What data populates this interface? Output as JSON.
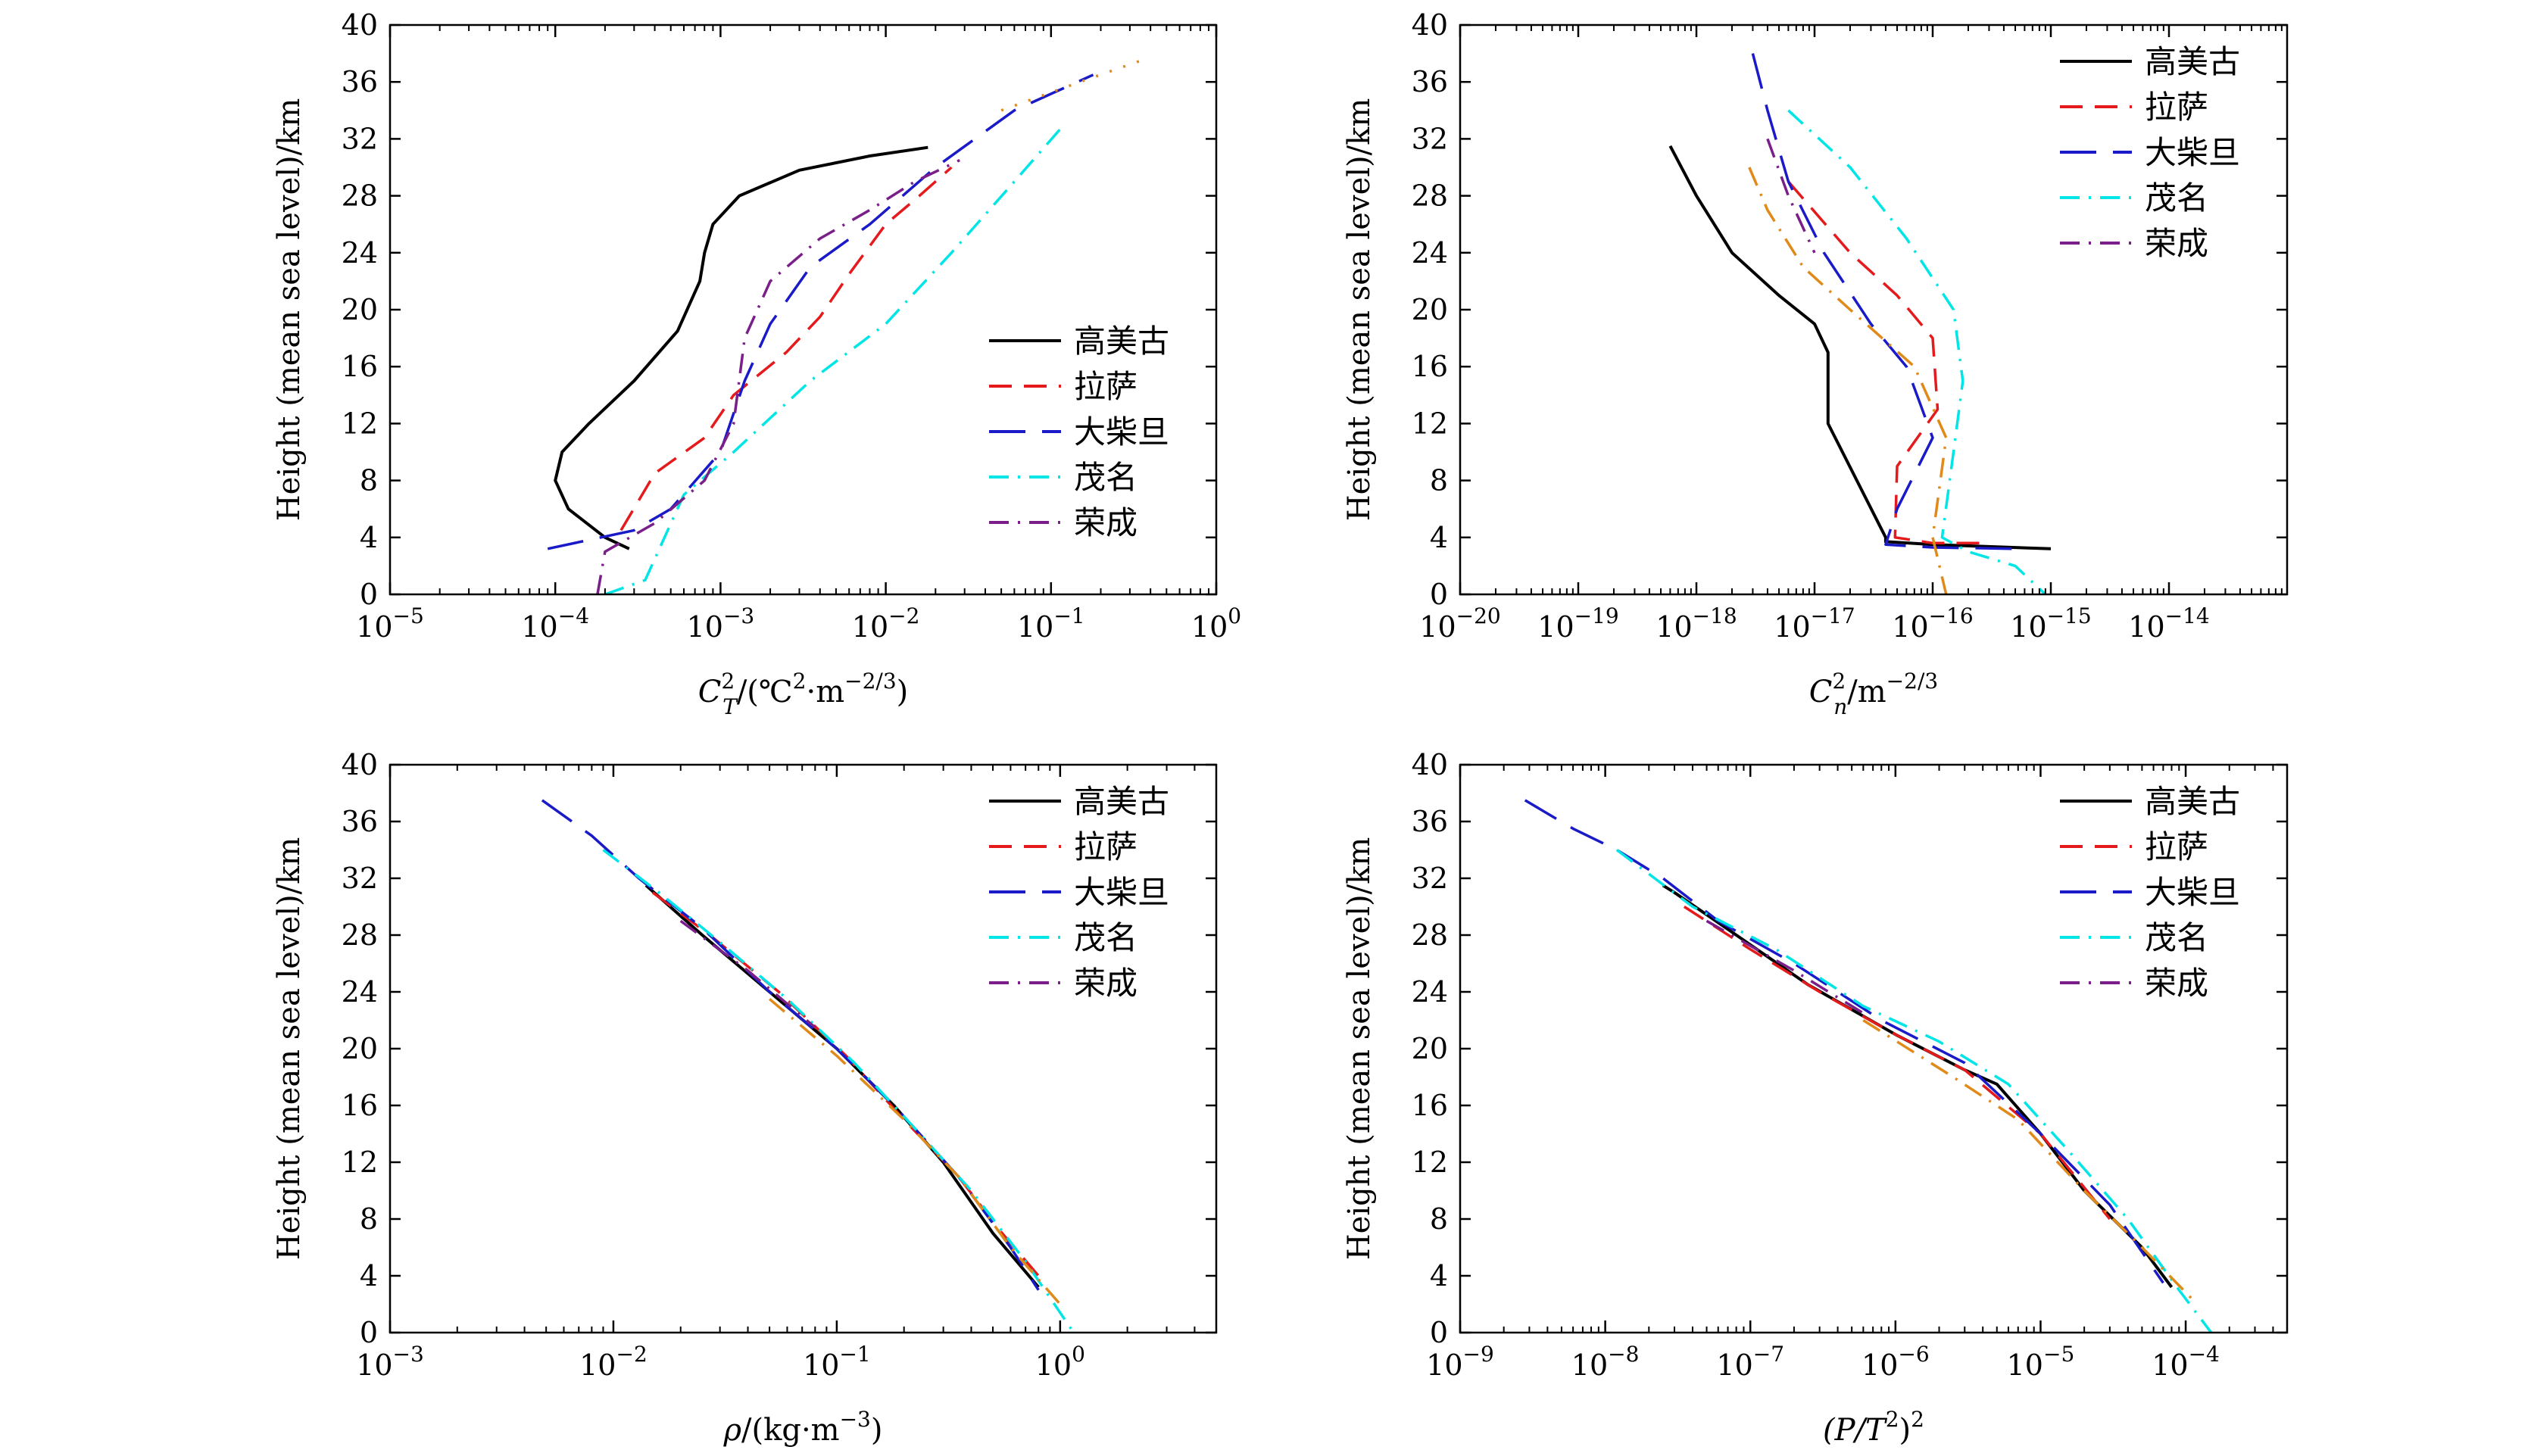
{
  "colors": {
    "高美古": "#000000",
    "拉萨": "#e41a1c",
    "大柴旦": "#1a1ac8",
    "茂名": "#00e5e5",
    "荣成": "#7a1f8a",
    "orange": "#e08a1a"
  },
  "chart_data": [
    {
      "id": "ct2",
      "type": "line",
      "xscale": "log",
      "xlim": [
        1e-05,
        1
      ],
      "ylim": [
        0,
        40
      ],
      "xticks": [
        {
          "value": 1e-05,
          "base": "10",
          "exp": "−5"
        },
        {
          "value": 0.0001,
          "base": "10",
          "exp": "−4"
        },
        {
          "value": 0.001,
          "base": "10",
          "exp": "−3"
        },
        {
          "value": 0.01,
          "base": "10",
          "exp": "−2"
        },
        {
          "value": 0.1,
          "base": "10",
          "exp": "−1"
        },
        {
          "value": 1,
          "base": "10",
          "exp": "0"
        }
      ],
      "yticks": [
        "0",
        "4",
        "8",
        "12",
        "16",
        "20",
        "24",
        "28",
        "32",
        "36",
        "40"
      ],
      "ylabel": "Height (mean sea level)/km",
      "xlabel": {
        "pre": "C",
        "sup": "2",
        "sub": "T",
        "rest": "/(℃",
        "sup2": "2",
        "rest2": "·m",
        "sup3": "−2/3",
        "rest3": ")"
      },
      "legend": {
        "position": "lower-right",
        "entries": [
          "高美古",
          "拉萨",
          "大柴旦",
          "茂名",
          "荣成"
        ]
      },
      "series": [
        {
          "name": "高美古",
          "style": "solid",
          "x": [
            0.00028,
            0.0002,
            0.00012,
            0.0001,
            0.00011,
            0.00016,
            0.0003,
            0.00055,
            0.00075,
            0.0008,
            0.0009,
            0.0013,
            0.003,
            0.008,
            0.018
          ],
          "y": [
            3.2,
            4,
            6,
            8,
            10,
            12,
            15,
            18.5,
            22,
            24,
            26,
            28,
            29.8,
            30.8,
            31.4
          ]
        },
        {
          "name": "拉萨",
          "style": "dash",
          "x": [
            0.00025,
            0.0004,
            0.0008,
            0.0012,
            0.0025,
            0.004,
            0.006,
            0.01,
            0.016,
            0.025
          ],
          "y": [
            4.5,
            8.5,
            11,
            14,
            17,
            19.5,
            22.5,
            26,
            28,
            30
          ]
        },
        {
          "name": "大柴旦",
          "style": "longdash",
          "x": [
            9e-05,
            0.0003,
            0.0005,
            0.001,
            0.0014,
            0.002,
            0.0035,
            0.008,
            0.02,
            0.06,
            0.18
          ],
          "y": [
            3.2,
            4.5,
            6,
            10,
            15,
            19,
            23,
            26,
            30,
            34,
            36.5
          ]
        },
        {
          "name": "茂名",
          "style": "dashdot",
          "x": [
            0.0002,
            0.00035,
            0.0006,
            0.0012,
            0.0035,
            0.01,
            0.025,
            0.06,
            0.12
          ],
          "y": [
            0,
            1,
            7,
            10,
            15,
            19,
            24,
            29,
            33
          ]
        },
        {
          "name": "荣成",
          "style": "dashdot",
          "x": [
            0.00018,
            0.0002,
            0.0004,
            0.0008,
            0.0012,
            0.0014,
            0.002,
            0.004,
            0.008,
            0.015,
            0.028
          ],
          "y": [
            0,
            3,
            5,
            8,
            12,
            18,
            22,
            25,
            27,
            29,
            30.5
          ]
        },
        {
          "name": "orange",
          "style": "dot",
          "x": [
            0.05,
            0.15,
            0.35
          ],
          "y": [
            34,
            36,
            37.5
          ]
        }
      ]
    },
    {
      "id": "cn2",
      "type": "line",
      "xscale": "log",
      "xlim": [
        1e-20,
        1e-13
      ],
      "ylim": [
        0,
        40
      ],
      "xticks": [
        {
          "value": 1e-20,
          "base": "10",
          "exp": "−20"
        },
        {
          "value": 1e-19,
          "base": "10",
          "exp": "−19"
        },
        {
          "value": 1e-18,
          "base": "10",
          "exp": "−18"
        },
        {
          "value": 1e-17,
          "base": "10",
          "exp": "−17"
        },
        {
          "value": 1e-16,
          "base": "10",
          "exp": "−16"
        },
        {
          "value": 1e-15,
          "base": "10",
          "exp": "−15"
        },
        {
          "value": 1e-14,
          "base": "10",
          "exp": "−14"
        }
      ],
      "yticks": [
        "0",
        "4",
        "8",
        "12",
        "16",
        "20",
        "24",
        "28",
        "32",
        "36",
        "40"
      ],
      "ylabel": "Height (mean sea level)/km",
      "xlabel": {
        "pre": "C",
        "sup": "2",
        "sub": "n",
        "rest": "/m",
        "sup2": "−2/3"
      },
      "legend": {
        "position": "upper-right",
        "entries": [
          "高美古",
          "拉萨",
          "大柴旦",
          "茂名",
          "荣成"
        ]
      },
      "series": [
        {
          "name": "高美古",
          "style": "solid",
          "x": [
            6e-19,
            1e-18,
            2e-18,
            5e-18,
            1e-17,
            1.3e-17,
            1.3e-17,
            1.3e-17,
            4e-17,
            4e-17,
            1e-16,
            1e-15
          ],
          "y": [
            31.5,
            28,
            24,
            21,
            19,
            17,
            15,
            12,
            4,
            3.7,
            3.5,
            3.2
          ]
        },
        {
          "name": "拉萨",
          "style": "dash",
          "x": [
            6e-18,
            2e-17,
            5e-17,
            1e-16,
            1.1e-16,
            5e-17,
            4.8e-17,
            1e-16,
            3e-16
          ],
          "y": [
            29,
            24,
            21,
            18,
            13,
            9,
            4,
            3.6,
            3.6
          ]
        },
        {
          "name": "大柴旦",
          "style": "longdash",
          "x": [
            3e-18,
            4e-18,
            6e-18,
            1.2e-17,
            3e-17,
            6e-17,
            1e-16,
            5e-17,
            4e-17,
            1e-16,
            5e-16
          ],
          "y": [
            38,
            34,
            29,
            24,
            19,
            16,
            11,
            6,
            3.5,
            3.3,
            3.2
          ]
        },
        {
          "name": "茂名",
          "style": "dashdot",
          "x": [
            6e-18,
            2e-17,
            6e-17,
            1.5e-16,
            1.8e-16,
            1.5e-16,
            1.2e-16,
            2e-16,
            5e-16,
            9e-16
          ],
          "y": [
            34,
            30,
            25,
            20,
            15,
            10,
            4,
            3,
            2,
            0
          ]
        },
        {
          "name": "荣成",
          "style": "dashdot",
          "x": [
            4e-18,
            6e-18,
            1e-17
          ],
          "y": [
            32,
            28,
            24
          ]
        },
        {
          "name": "orange",
          "style": "dashdot",
          "x": [
            2.8e-18,
            4e-18,
            8e-18,
            2e-17,
            7e-17,
            1.3e-16,
            1e-16,
            1.3e-16
          ],
          "y": [
            30,
            27,
            23,
            20,
            16,
            11,
            4,
            0
          ]
        }
      ]
    },
    {
      "id": "rho",
      "type": "line",
      "xscale": "log",
      "xlim": [
        0.001,
        5
      ],
      "ylim": [
        0,
        40
      ],
      "xticks": [
        {
          "value": 0.001,
          "base": "10",
          "exp": "−3"
        },
        {
          "value": 0.01,
          "base": "10",
          "exp": "−2"
        },
        {
          "value": 0.1,
          "base": "10",
          "exp": "−1"
        },
        {
          "value": 1,
          "base": "10",
          "exp": "0"
        }
      ],
      "yticks": [
        "0",
        "4",
        "8",
        "12",
        "16",
        "20",
        "24",
        "28",
        "32",
        "36",
        "40"
      ],
      "ylabel": "Height (mean sea level)/km",
      "xlabel": {
        "pre": "ρ",
        "rest": "/(kg·m",
        "sup2": "−3",
        "rest2": ")"
      },
      "legend": {
        "position": "upper-right",
        "entries": [
          "高美古",
          "拉萨",
          "大柴旦",
          "茂名",
          "荣成"
        ]
      },
      "series": [
        {
          "name": "高美古",
          "style": "solid",
          "x": [
            0.014,
            0.025,
            0.05,
            0.1,
            0.18,
            0.3,
            0.5,
            0.8
          ],
          "y": [
            31.5,
            28,
            24,
            20,
            16,
            12,
            7,
            3.2
          ]
        },
        {
          "name": "拉萨",
          "style": "dash",
          "x": [
            0.015,
            0.027,
            0.055,
            0.11,
            0.2,
            0.35,
            0.55,
            0.8
          ],
          "y": [
            31,
            28,
            24,
            19.5,
            15,
            11,
            7,
            4
          ]
        },
        {
          "name": "大柴旦",
          "style": "longdash",
          "x": [
            0.0048,
            0.008,
            0.013,
            0.025,
            0.05,
            0.1,
            0.18,
            0.35,
            0.6,
            0.8
          ],
          "y": [
            37.5,
            35,
            32,
            28.5,
            24,
            20,
            16,
            11,
            6,
            3
          ]
        },
        {
          "name": "茂名",
          "style": "dashdot",
          "x": [
            0.009,
            0.016,
            0.03,
            0.06,
            0.12,
            0.22,
            0.4,
            0.7,
            1.15
          ],
          "y": [
            34,
            31,
            27.5,
            23.5,
            19,
            14.5,
            10,
            5,
            0
          ]
        },
        {
          "name": "荣成",
          "style": "dashdot",
          "x": [
            0.02,
            0.04,
            0.08
          ],
          "y": [
            29,
            25.5,
            21.5
          ]
        },
        {
          "name": "orange",
          "style": "dashdot",
          "x": [
            0.05,
            0.1,
            0.2,
            0.35,
            0.6,
            1.0
          ],
          "y": [
            23.5,
            19.5,
            15,
            11,
            6,
            2
          ]
        }
      ]
    },
    {
      "id": "pt2",
      "type": "line",
      "xscale": "log",
      "xlim": [
        1e-09,
        0.0005
      ],
      "ylim": [
        0,
        40
      ],
      "xticks": [
        {
          "value": 1e-09,
          "base": "10",
          "exp": "−9"
        },
        {
          "value": 1e-08,
          "base": "10",
          "exp": "−8"
        },
        {
          "value": 1e-07,
          "base": "10",
          "exp": "−7"
        },
        {
          "value": 1e-06,
          "base": "10",
          "exp": "−6"
        },
        {
          "value": 1e-05,
          "base": "10",
          "exp": "−5"
        },
        {
          "value": 0.0001,
          "base": "10",
          "exp": "−4"
        }
      ],
      "yticks": [
        "0",
        "4",
        "8",
        "12",
        "16",
        "20",
        "24",
        "28",
        "32",
        "36",
        "40"
      ],
      "ylabel": "Height (mean sea level)/km",
      "xlabel": {
        "pre": "(P/T",
        "sup": "2",
        "rest": ")",
        "sup2": "2"
      },
      "legend": {
        "position": "upper-right",
        "entries": [
          "高美古",
          "拉萨",
          "大柴旦",
          "茂名",
          "荣成"
        ]
      },
      "series": [
        {
          "name": "高美古",
          "style": "solid",
          "x": [
            2.5e-08,
            3e-08,
            8e-08,
            2.5e-07,
            1e-06,
            3e-06,
            5e-06,
            1e-05,
            2e-05,
            5e-05,
            8e-05
          ],
          "y": [
            31.5,
            31,
            28,
            24.5,
            21,
            18.5,
            17.5,
            14,
            10,
            6,
            3.2
          ]
        },
        {
          "name": "拉萨",
          "style": "dash",
          "x": [
            3.5e-08,
            1e-07,
            3e-07,
            1e-06,
            3e-06,
            1e-05,
            3e-05
          ],
          "y": [
            30,
            27,
            24,
            21,
            18.5,
            14,
            8
          ]
        },
        {
          "name": "大柴旦",
          "style": "longdash",
          "x": [
            2.8e-09,
            6e-09,
            1.2e-08,
            2.5e-08,
            6e-08,
            2e-07,
            8e-07,
            3e-06,
            1e-05,
            3e-05,
            7e-05
          ],
          "y": [
            37.5,
            35.5,
            34,
            32,
            29,
            26,
            22,
            19,
            14,
            9,
            3.5
          ]
        },
        {
          "name": "茂名",
          "style": "dashdot",
          "x": [
            1.2e-08,
            4e-08,
            1.5e-07,
            6e-07,
            2e-06,
            6e-06,
            1.5e-05,
            4e-05,
            9e-05,
            0.00015
          ],
          "y": [
            34,
            30,
            27,
            23,
            20.5,
            17.5,
            13,
            8,
            3,
            0
          ]
        },
        {
          "name": "荣成",
          "style": "dashdot",
          "x": [
            5e-08,
            2e-07,
            6e-07
          ],
          "y": [
            29,
            25.5,
            22.5
          ]
        },
        {
          "name": "orange",
          "style": "dashdot",
          "x": [
            6e-07,
            2.5e-06,
            7e-06,
            2e-05,
            5e-05,
            0.00012
          ],
          "y": [
            22,
            18,
            15,
            10,
            6,
            2
          ]
        }
      ]
    }
  ]
}
